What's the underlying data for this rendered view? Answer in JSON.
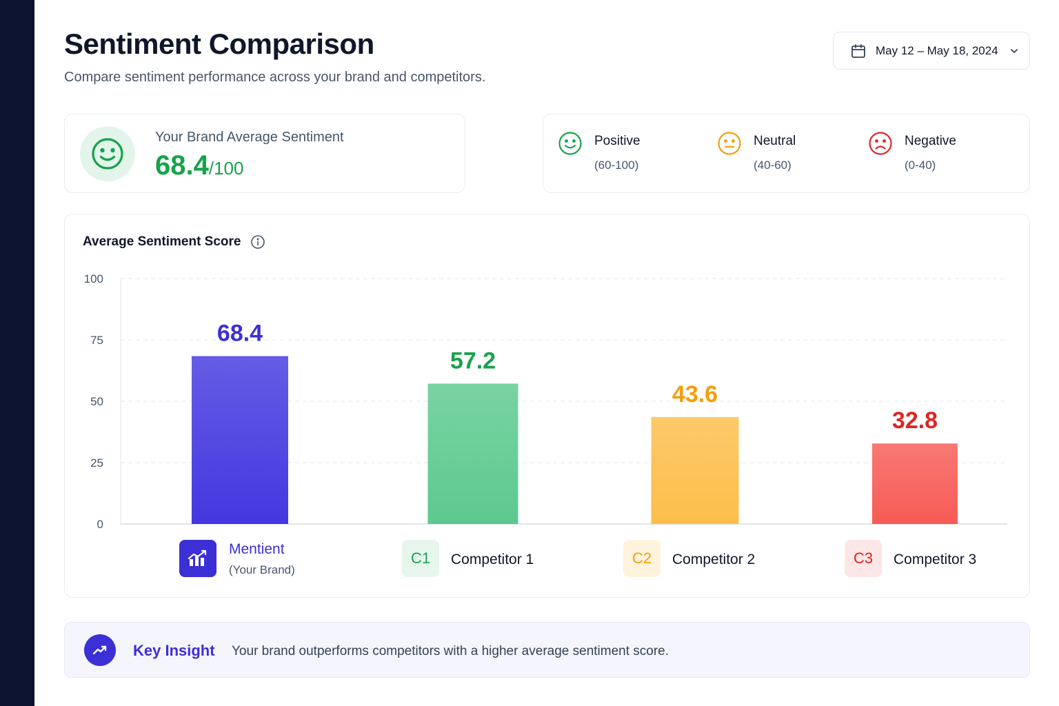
{
  "header": {
    "title": "Sentiment Comparison",
    "subtitle": "Compare sentiment performance across your brand and competitors."
  },
  "date_range": {
    "label": "May 12 – May 18, 2024",
    "icon": "calendar-icon"
  },
  "brand_card": {
    "label": "Your Brand Average Sentiment",
    "score": "68.4",
    "max": "/100",
    "icon": "smile-face-icon"
  },
  "legend": {
    "positive": {
      "name": "Positive",
      "range": "(60-100)",
      "color": "#16a34a"
    },
    "neutral": {
      "name": "Neutral",
      "range": "(40-60)",
      "color": "#f59e0b"
    },
    "negative": {
      "name": "Negative",
      "range": "(0-40)",
      "color": "#dc2626"
    }
  },
  "chart": {
    "title": "Average Sentiment Score",
    "entities": [
      {
        "name": "Mentient",
        "sub": "(Your Brand)",
        "badge": "",
        "icon": "chart-icon",
        "color": "#3b2fd6"
      },
      {
        "name": "Competitor 1",
        "sub": "",
        "badge": "C1",
        "color": "#16a34a"
      },
      {
        "name": "Competitor 2",
        "sub": "",
        "badge": "C2",
        "color": "#f59e0b"
      },
      {
        "name": "Competitor 3",
        "sub": "",
        "badge": "C3",
        "color": "#dc2626"
      }
    ]
  },
  "chart_data": {
    "type": "bar",
    "title": "Average Sentiment Score",
    "categories": [
      "Mentient",
      "Competitor 1",
      "Competitor 2",
      "Competitor 3"
    ],
    "values": [
      68.4,
      57.2,
      43.6,
      32.8
    ],
    "value_labels": [
      "68.4",
      "57.2",
      "43.6",
      "32.8"
    ],
    "colors": [
      "#3b2fd6",
      "#16a34a",
      "#f59e0b",
      "#dc2626"
    ],
    "bar_fills": [
      "#4338e0",
      "#5cc98f",
      "#fdbe4a",
      "#f75b55"
    ],
    "yticks": [
      "0",
      "25",
      "50",
      "75",
      "100"
    ],
    "ylim": [
      0,
      100
    ],
    "grid": true
  },
  "insight": {
    "label": "Key Insight",
    "text": "Your brand outperforms competitors with a higher average sentiment score.",
    "icon": "trending-up-icon"
  }
}
